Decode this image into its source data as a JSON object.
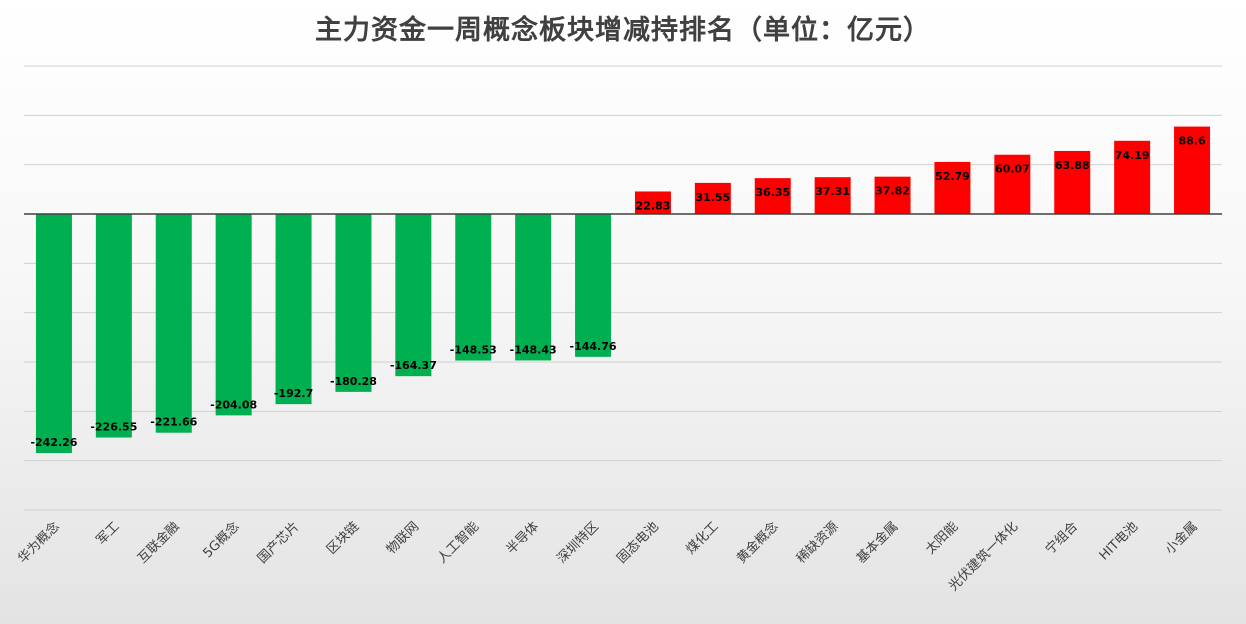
{
  "chart_data": {
    "type": "bar",
    "title": "主力资金一周概念板块增减持排名（单位：亿元）",
    "categories": [
      "华为概念",
      "军工",
      "互联金融",
      "5G概念",
      "国产芯片",
      "区块链",
      "物联网",
      "人工智能",
      "半导体",
      "深圳特区",
      "固态电池",
      "煤化工",
      "黄金概念",
      "稀缺资源",
      "基本金属",
      "太阳能",
      "光伏建筑一体化",
      "宁组合",
      "HIT电池",
      "小金属"
    ],
    "values": [
      -242.26,
      -226.55,
      -221.66,
      -204.08,
      -192.7,
      -180.28,
      -164.37,
      -148.53,
      -148.43,
      -144.76,
      22.83,
      31.55,
      36.35,
      37.31,
      37.82,
      52.79,
      60.07,
      63.88,
      74.19,
      88.6
    ],
    "value_labels": [
      "-242.26",
      "-226.55",
      "-221.66",
      "-204.08",
      "-192.7",
      "-180.28",
      "-164.37",
      "-148.53",
      "-148.43",
      "-144.76",
      "22.83",
      "31.55",
      "36.35",
      "37.31",
      "37.82",
      "52.79",
      "60.07",
      "63.88",
      "74.19",
      "88.6"
    ],
    "ylim": [
      -300,
      150
    ],
    "grid": true,
    "xlabel": "",
    "ylabel": "",
    "colors": {
      "negative": "#00b050",
      "positive": "#ff0000",
      "grid": "#d0d0d0",
      "zero_line": "#404040"
    }
  }
}
